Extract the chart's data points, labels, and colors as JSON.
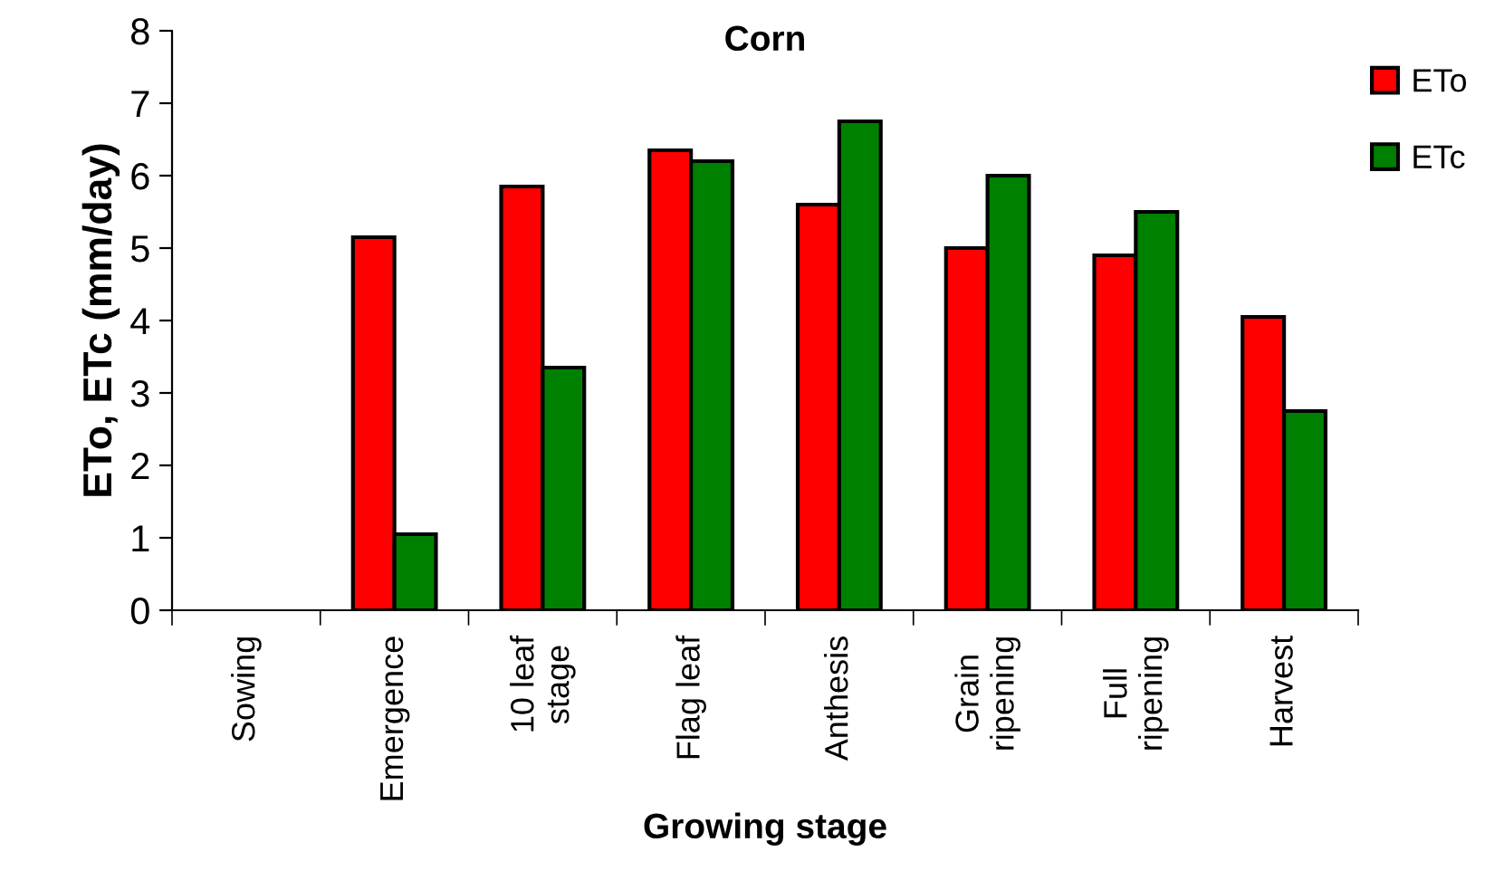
{
  "chart_data": {
    "type": "bar",
    "title": "Corn",
    "xlabel": "Growing stage",
    "ylabel": "ETo, ETc (mm/day)",
    "categories": [
      "Sowing",
      "Emergence",
      "10 leaf\nstage",
      "Flag leaf",
      "Anthesis",
      "Grain\nripening",
      "Full\nripening",
      "Harvest"
    ],
    "series": [
      {
        "name": "ETo",
        "color": "#ff0000",
        "values": [
          null,
          5.15,
          5.85,
          6.35,
          5.6,
          5.0,
          4.9,
          4.05
        ]
      },
      {
        "name": "ETc",
        "color": "#008000",
        "values": [
          null,
          1.05,
          3.35,
          6.2,
          6.75,
          6.0,
          5.5,
          2.75
        ]
      }
    ],
    "ylim": [
      0,
      8
    ],
    "yticks": [
      0,
      1,
      2,
      3,
      4,
      5,
      6,
      7,
      8
    ],
    "grid": false,
    "legend": "top right"
  }
}
